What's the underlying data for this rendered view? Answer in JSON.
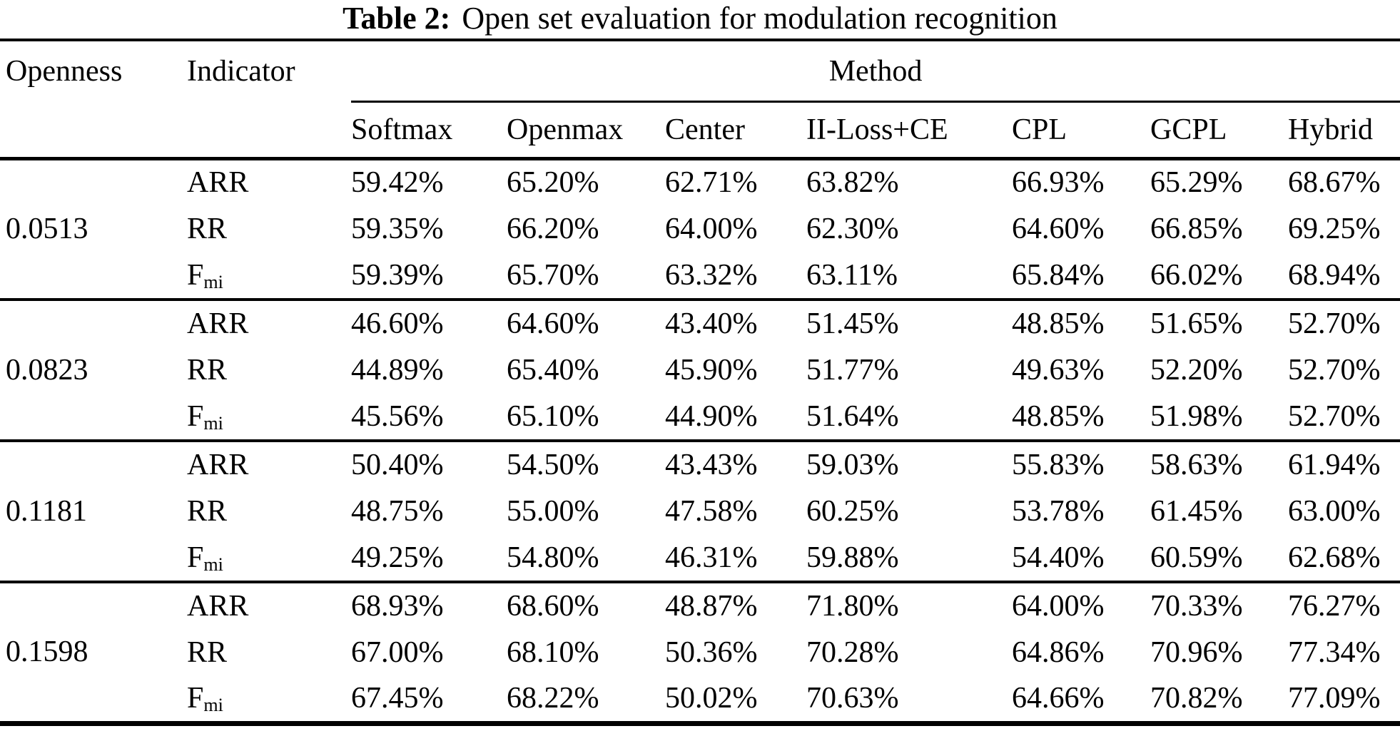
{
  "title": {
    "label": "Table 2:",
    "text": "Open set evaluation for modulation recognition"
  },
  "table": {
    "headers": {
      "openness": "Openness",
      "indicator": "Indicator",
      "method": "Method"
    },
    "methods": [
      "Softmax",
      "Openmax",
      "Center",
      "II-Loss+CE",
      "CPL",
      "GCPL",
      "Hybrid"
    ],
    "groups": [
      {
        "openness": "0.0513",
        "rows": [
          {
            "indicator": "ARR",
            "values": [
              "59.42%",
              "65.20%",
              "62.71%",
              "63.82%",
              "66.93%",
              "65.29%",
              "68.67%"
            ]
          },
          {
            "indicator": "RR",
            "values": [
              "59.35%",
              "66.20%",
              "64.00%",
              "62.30%",
              "64.60%",
              "66.85%",
              "69.25%"
            ]
          },
          {
            "indicator": "F_mi",
            "values": [
              "59.39%",
              "65.70%",
              "63.32%",
              "63.11%",
              "65.84%",
              "66.02%",
              "68.94%"
            ]
          }
        ]
      },
      {
        "openness": "0.0823",
        "rows": [
          {
            "indicator": "ARR",
            "values": [
              "46.60%",
              "64.60%",
              "43.40%",
              "51.45%",
              "48.85%",
              "51.65%",
              "52.70%"
            ]
          },
          {
            "indicator": "RR",
            "values": [
              "44.89%",
              "65.40%",
              "45.90%",
              "51.77%",
              "49.63%",
              "52.20%",
              "52.70%"
            ]
          },
          {
            "indicator": "F_mi",
            "values": [
              "45.56%",
              "65.10%",
              "44.90%",
              "51.64%",
              "48.85%",
              "51.98%",
              "52.70%"
            ]
          }
        ]
      },
      {
        "openness": "0.1181",
        "rows": [
          {
            "indicator": "ARR",
            "values": [
              "50.40%",
              "54.50%",
              "43.43%",
              "59.03%",
              "55.83%",
              "58.63%",
              "61.94%"
            ]
          },
          {
            "indicator": "RR",
            "values": [
              "48.75%",
              "55.00%",
              "47.58%",
              "60.25%",
              "53.78%",
              "61.45%",
              "63.00%"
            ]
          },
          {
            "indicator": "F_mi",
            "values": [
              "49.25%",
              "54.80%",
              "46.31%",
              "59.88%",
              "54.40%",
              "60.59%",
              "62.68%"
            ]
          }
        ]
      },
      {
        "openness": "0.1598",
        "rows": [
          {
            "indicator": "ARR",
            "values": [
              "68.93%",
              "68.60%",
              "48.87%",
              "71.80%",
              "64.00%",
              "70.33%",
              "76.27%"
            ]
          },
          {
            "indicator": "RR",
            "values": [
              "67.00%",
              "68.10%",
              "50.36%",
              "70.28%",
              "64.86%",
              "70.96%",
              "77.34%"
            ]
          },
          {
            "indicator": "F_mi",
            "values": [
              "67.45%",
              "68.22%",
              "50.02%",
              "70.63%",
              "64.66%",
              "70.82%",
              "77.09%"
            ]
          }
        ]
      }
    ]
  }
}
